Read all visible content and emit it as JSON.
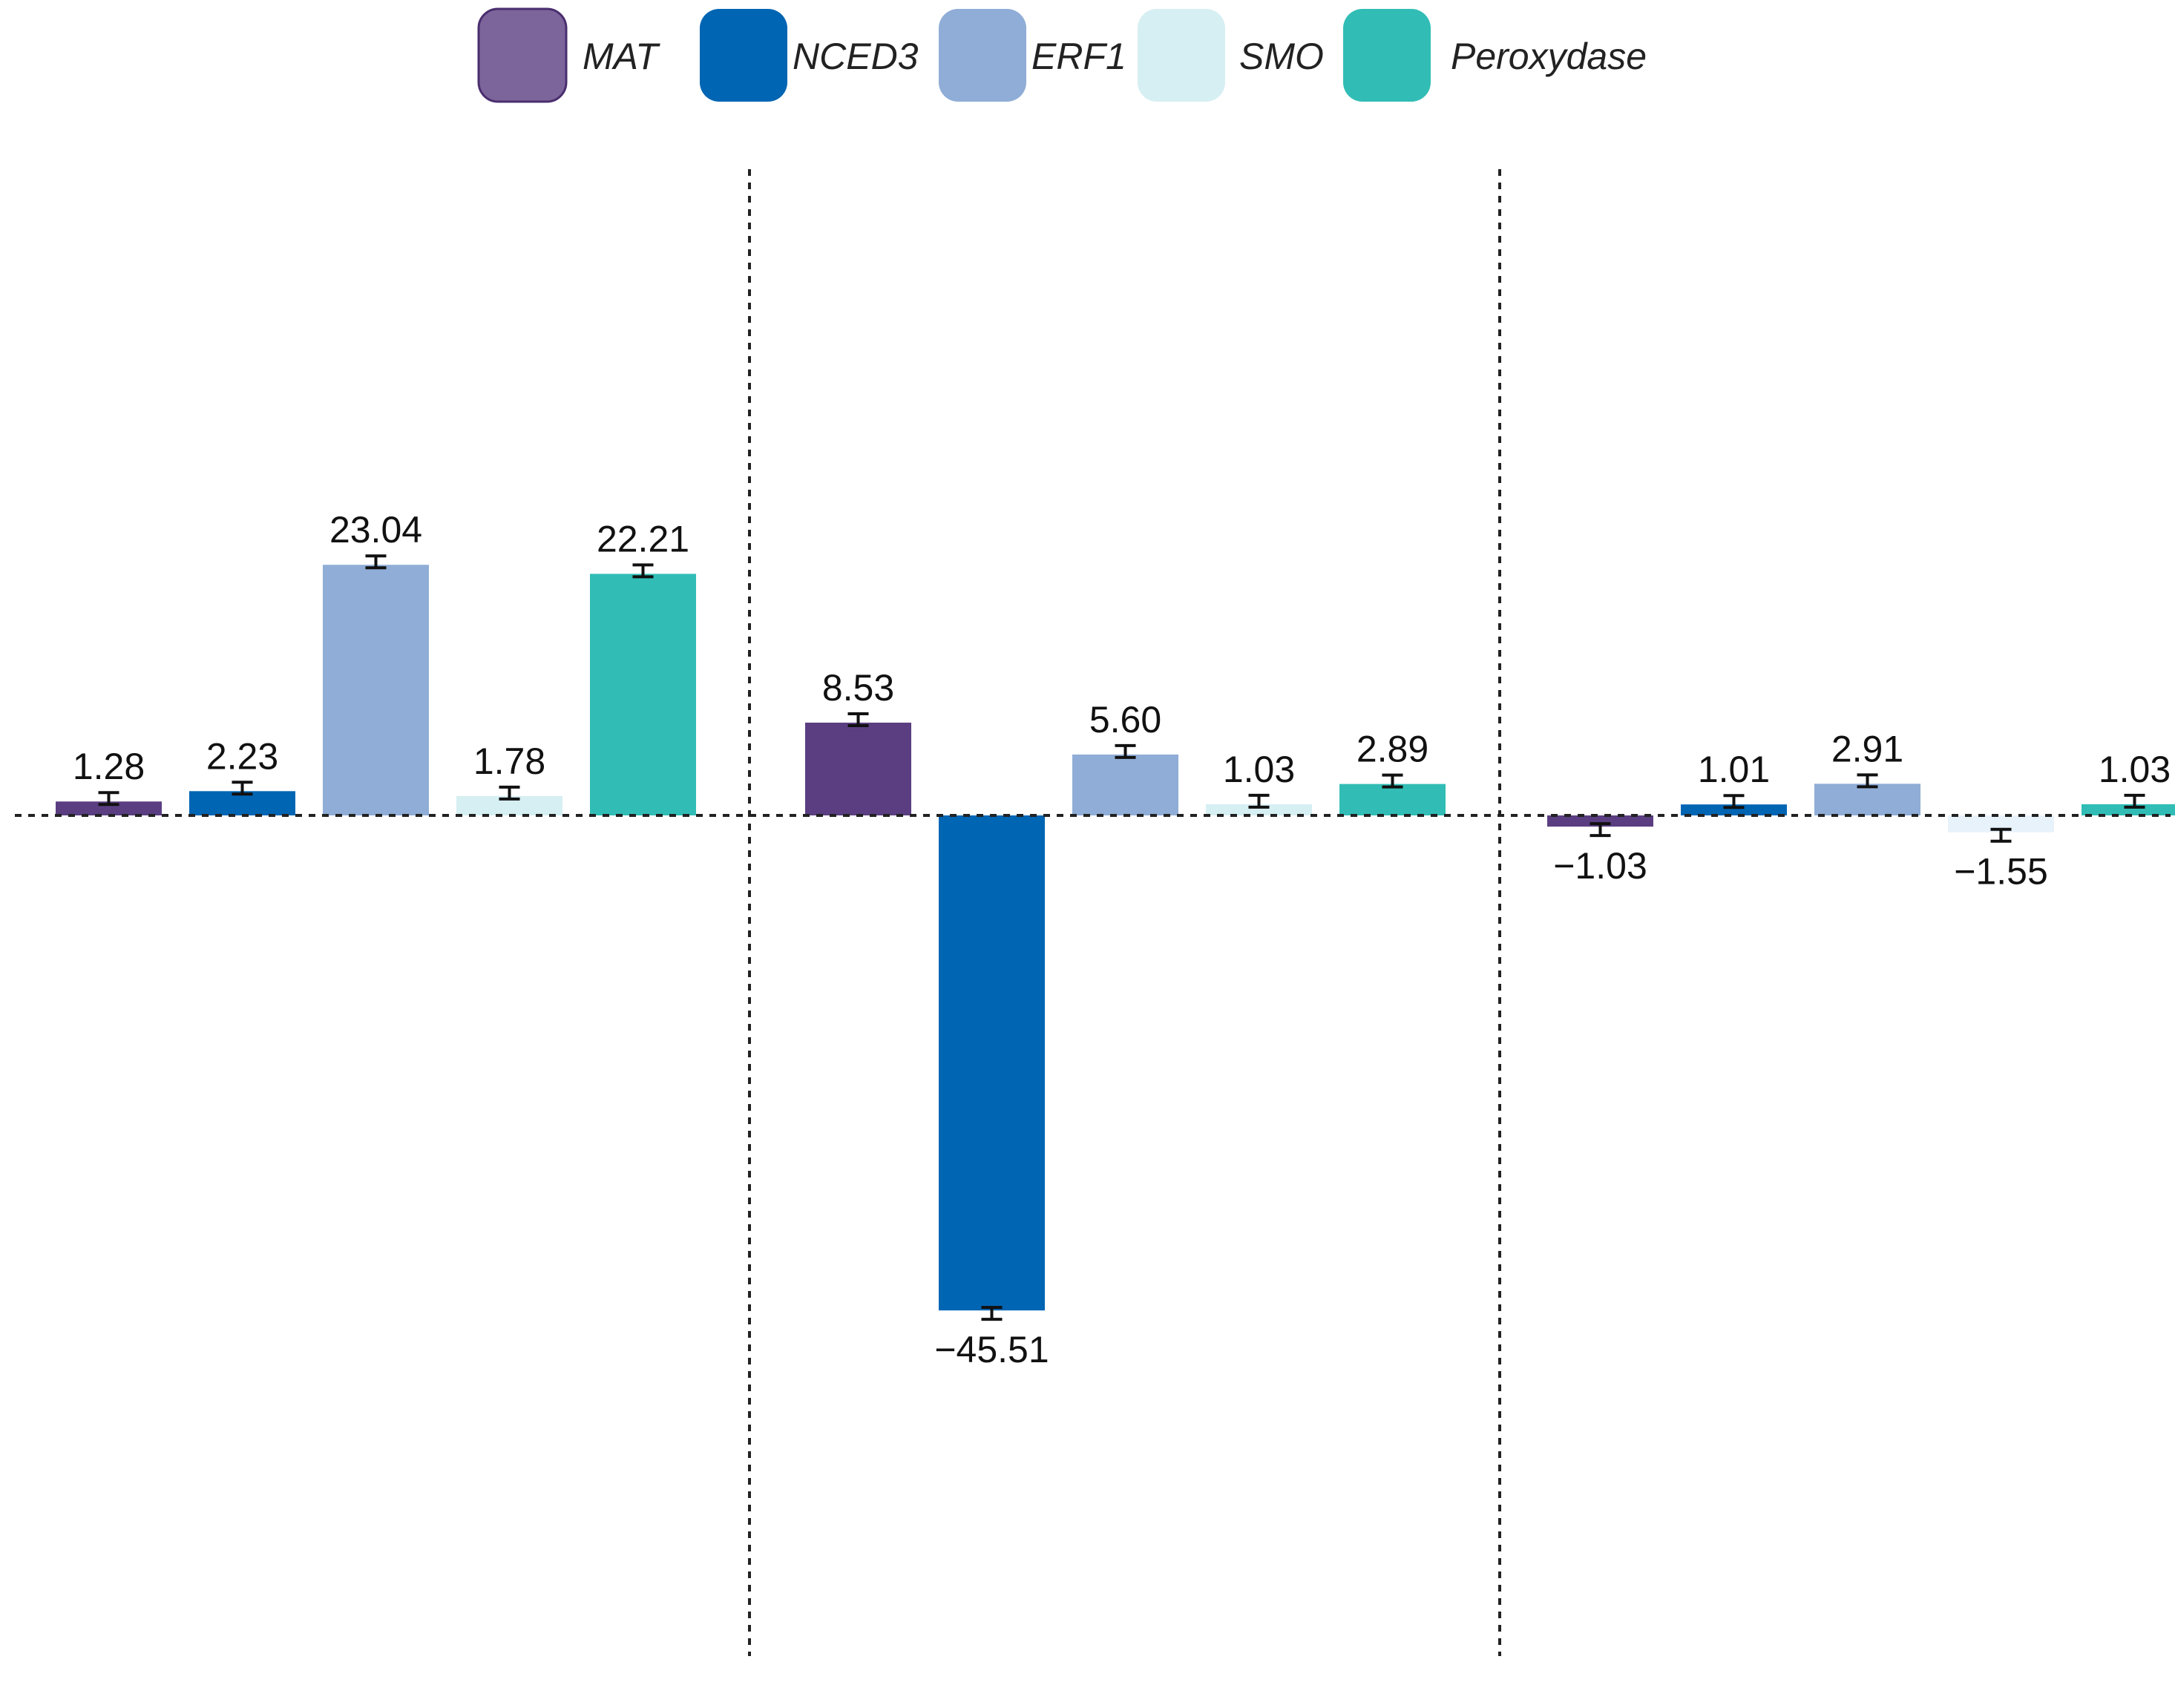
{
  "chart_data": {
    "type": "bar",
    "title": "",
    "xlabel": "",
    "ylabel": "",
    "ylim": [
      -47,
      26
    ],
    "grid": false,
    "legend_position": "top-center",
    "groups": [
      {
        "name": "",
        "series": [
          {
            "gene": "MAT",
            "value": 1.28,
            "label": "1.28"
          },
          {
            "gene": "NCED3",
            "value": 2.23,
            "label": "2.23"
          },
          {
            "gene": "ERF1",
            "value": 23.04,
            "label": "23.04"
          },
          {
            "gene": "SMO",
            "value": 1.78,
            "label": "1.78"
          },
          {
            "gene": "Peroxydase",
            "value": 22.21,
            "label": "22.21"
          }
        ]
      },
      {
        "name": "",
        "series": [
          {
            "gene": "MAT",
            "value": 8.53,
            "label": "8.53"
          },
          {
            "gene": "NCED3",
            "value": -45.51,
            "label": "−45.51"
          },
          {
            "gene": "ERF1",
            "value": 5.6,
            "label": "5.60"
          },
          {
            "gene": "SMO",
            "value": 1.03,
            "label": "1.03"
          },
          {
            "gene": "Peroxydase",
            "value": 2.89,
            "label": "2.89"
          }
        ]
      },
      {
        "name": "",
        "series": [
          {
            "gene": "MAT",
            "value": -1.03,
            "label": "−1.03"
          },
          {
            "gene": "NCED3",
            "value": 1.01,
            "label": "1.01"
          },
          {
            "gene": "ERF1",
            "value": 2.91,
            "label": "2.91"
          },
          {
            "gene": "SMO",
            "value": -1.55,
            "label": "−1.55"
          },
          {
            "gene": "Peroxydase",
            "value": 1.03,
            "label": "1.03"
          }
        ]
      }
    ],
    "legend": [
      {
        "name": "MAT",
        "color": "#5b3e82"
      },
      {
        "name": "NCED3",
        "color": "#0065b3"
      },
      {
        "name": "ERF1",
        "color": "#8fadd6"
      },
      {
        "name": "SMO",
        "color": "#d6eff3"
      },
      {
        "name": "Peroxydase",
        "color": "#31bdb5"
      }
    ]
  }
}
